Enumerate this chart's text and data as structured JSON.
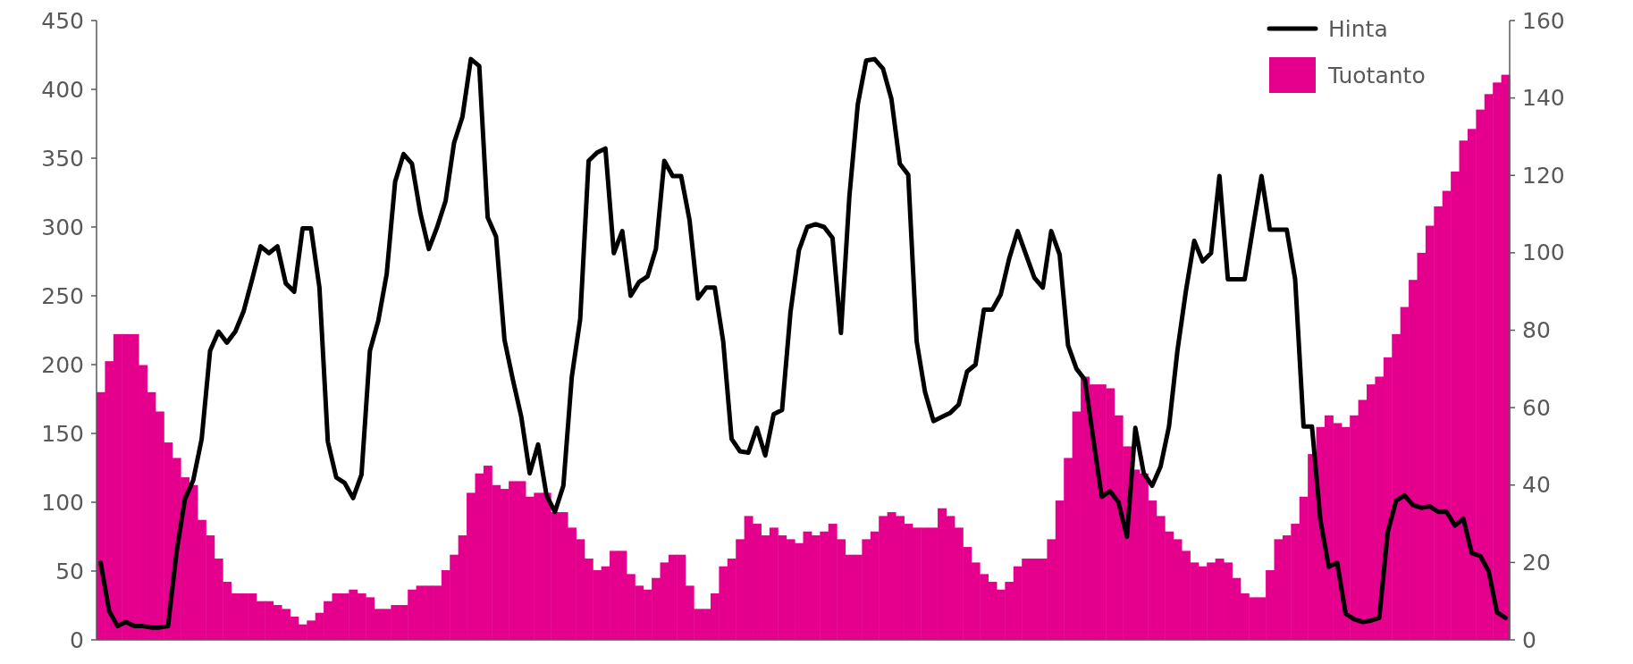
{
  "chart_data": {
    "type": "bar",
    "categories": [
      null,
      null,
      null,
      null,
      null,
      null,
      null,
      null,
      null,
      null,
      null,
      null,
      null,
      null,
      null,
      null,
      null,
      null,
      null,
      null,
      null,
      null,
      null,
      null,
      null,
      null,
      null,
      null,
      null,
      null,
      null,
      null,
      null,
      null,
      null,
      null,
      null,
      null,
      null,
      null,
      null,
      null,
      null,
      null,
      null,
      null,
      null,
      null,
      null,
      null,
      null,
      null,
      null,
      null,
      null,
      null,
      null,
      null,
      null,
      null,
      null,
      null,
      null,
      null,
      null,
      null,
      null,
      null,
      null,
      null,
      null,
      null,
      null,
      null,
      null,
      null,
      null,
      null,
      null,
      null,
      null,
      null,
      null,
      null,
      null,
      null,
      null,
      null,
      null,
      null,
      null,
      null,
      null,
      null,
      null,
      null,
      null,
      null,
      null,
      null,
      null,
      null,
      null,
      null,
      null,
      null,
      null,
      null,
      null,
      null,
      null,
      null,
      null,
      null,
      null,
      null,
      null,
      null,
      null,
      null,
      null,
      null,
      null,
      null,
      null,
      null,
      null,
      null,
      null,
      null,
      null,
      null,
      null,
      null,
      null,
      null,
      null,
      null,
      null,
      null,
      null,
      null,
      null,
      null,
      null,
      null,
      null,
      null,
      null,
      null,
      null,
      null,
      null,
      null,
      null,
      null,
      null,
      null,
      null,
      null,
      null,
      null,
      null,
      null,
      null,
      null,
      null,
      null
    ],
    "series": [
      {
        "name": "Hinta",
        "type": "line",
        "color": "#000000",
        "values": [
          56,
          21,
          10,
          13,
          10,
          10,
          9,
          9,
          10,
          63,
          102,
          116,
          146,
          210,
          224,
          216,
          224,
          239,
          262,
          286,
          281,
          286,
          259,
          253,
          299,
          299,
          256,
          144,
          118,
          114,
          103,
          120,
          210,
          232,
          266,
          333,
          353,
          346,
          310,
          284,
          300,
          319,
          361,
          380,
          422,
          417,
          307,
          293,
          218,
          189,
          162,
          121,
          142,
          105,
          93,
          112,
          191,
          233,
          348,
          354,
          357,
          281,
          297,
          250,
          260,
          264,
          284,
          348,
          337,
          337,
          305,
          248,
          256,
          256,
          217,
          146,
          137,
          136,
          154,
          134,
          164,
          167,
          238,
          283,
          300,
          302,
          300,
          292,
          223,
          322,
          389,
          421,
          422,
          415,
          393,
          346,
          338,
          217,
          180,
          159,
          162,
          165,
          171,
          195,
          200,
          240,
          240,
          251,
          277,
          297,
          280,
          263,
          256,
          297,
          280,
          214,
          197,
          189,
          146,
          104,
          108,
          100,
          75,
          154,
          121,
          112,
          126,
          155,
          210,
          253,
          290,
          275,
          281,
          337,
          262,
          262,
          262,
          300,
          337,
          298,
          298,
          298,
          262,
          155,
          155,
          87,
          53,
          56,
          19,
          15,
          13,
          14,
          16,
          78,
          101,
          105,
          98,
          96,
          97,
          93,
          93,
          83,
          88,
          63,
          61,
          50,
          20,
          16
        ]
      },
      {
        "name": "Tuotanto",
        "type": "bar",
        "axis": "y2",
        "color": "#e4008c",
        "values": [
          64,
          72,
          79,
          79,
          79,
          71,
          64,
          59,
          51,
          47,
          42,
          40,
          31,
          27,
          21,
          15,
          12,
          12,
          12,
          10,
          10,
          9,
          8,
          6,
          4,
          5,
          7,
          10,
          12,
          12,
          13,
          12,
          11,
          8,
          8,
          9,
          9,
          13,
          14,
          14,
          14,
          18,
          22,
          27,
          38,
          43,
          45,
          40,
          39,
          41,
          41,
          37,
          38,
          38,
          33,
          33,
          29,
          26,
          21,
          18,
          19,
          23,
          23,
          17,
          14,
          13,
          16,
          20,
          22,
          22,
          14,
          8,
          8,
          12,
          19,
          21,
          26,
          32,
          30,
          27,
          29,
          27,
          26,
          25,
          28,
          27,
          28,
          30,
          26,
          22,
          22,
          26,
          28,
          32,
          33,
          32,
          30,
          29,
          29,
          29,
          34,
          32,
          29,
          24,
          20,
          17,
          15,
          13,
          15,
          19,
          21,
          21,
          21,
          26,
          36,
          47,
          59,
          68,
          66,
          66,
          65,
          58,
          50,
          44,
          43,
          36,
          32,
          28,
          26,
          23,
          20,
          19,
          20,
          21,
          20,
          16,
          12,
          11,
          11,
          18,
          26,
          27,
          30,
          37,
          48,
          55,
          58,
          56,
          55,
          58,
          62,
          66,
          68,
          73,
          79,
          86,
          93,
          100,
          107,
          112,
          116,
          121,
          129,
          132,
          137,
          141,
          144,
          146
        ]
      }
    ],
    "ylim": [
      0,
      450
    ],
    "yticks": [
      0,
      50,
      100,
      150,
      200,
      250,
      300,
      350,
      400,
      450
    ],
    "y2lim": [
      0,
      160
    ],
    "y2ticks": [
      0,
      20,
      40,
      60,
      80,
      100,
      120,
      140,
      160
    ],
    "legend": "top right"
  }
}
